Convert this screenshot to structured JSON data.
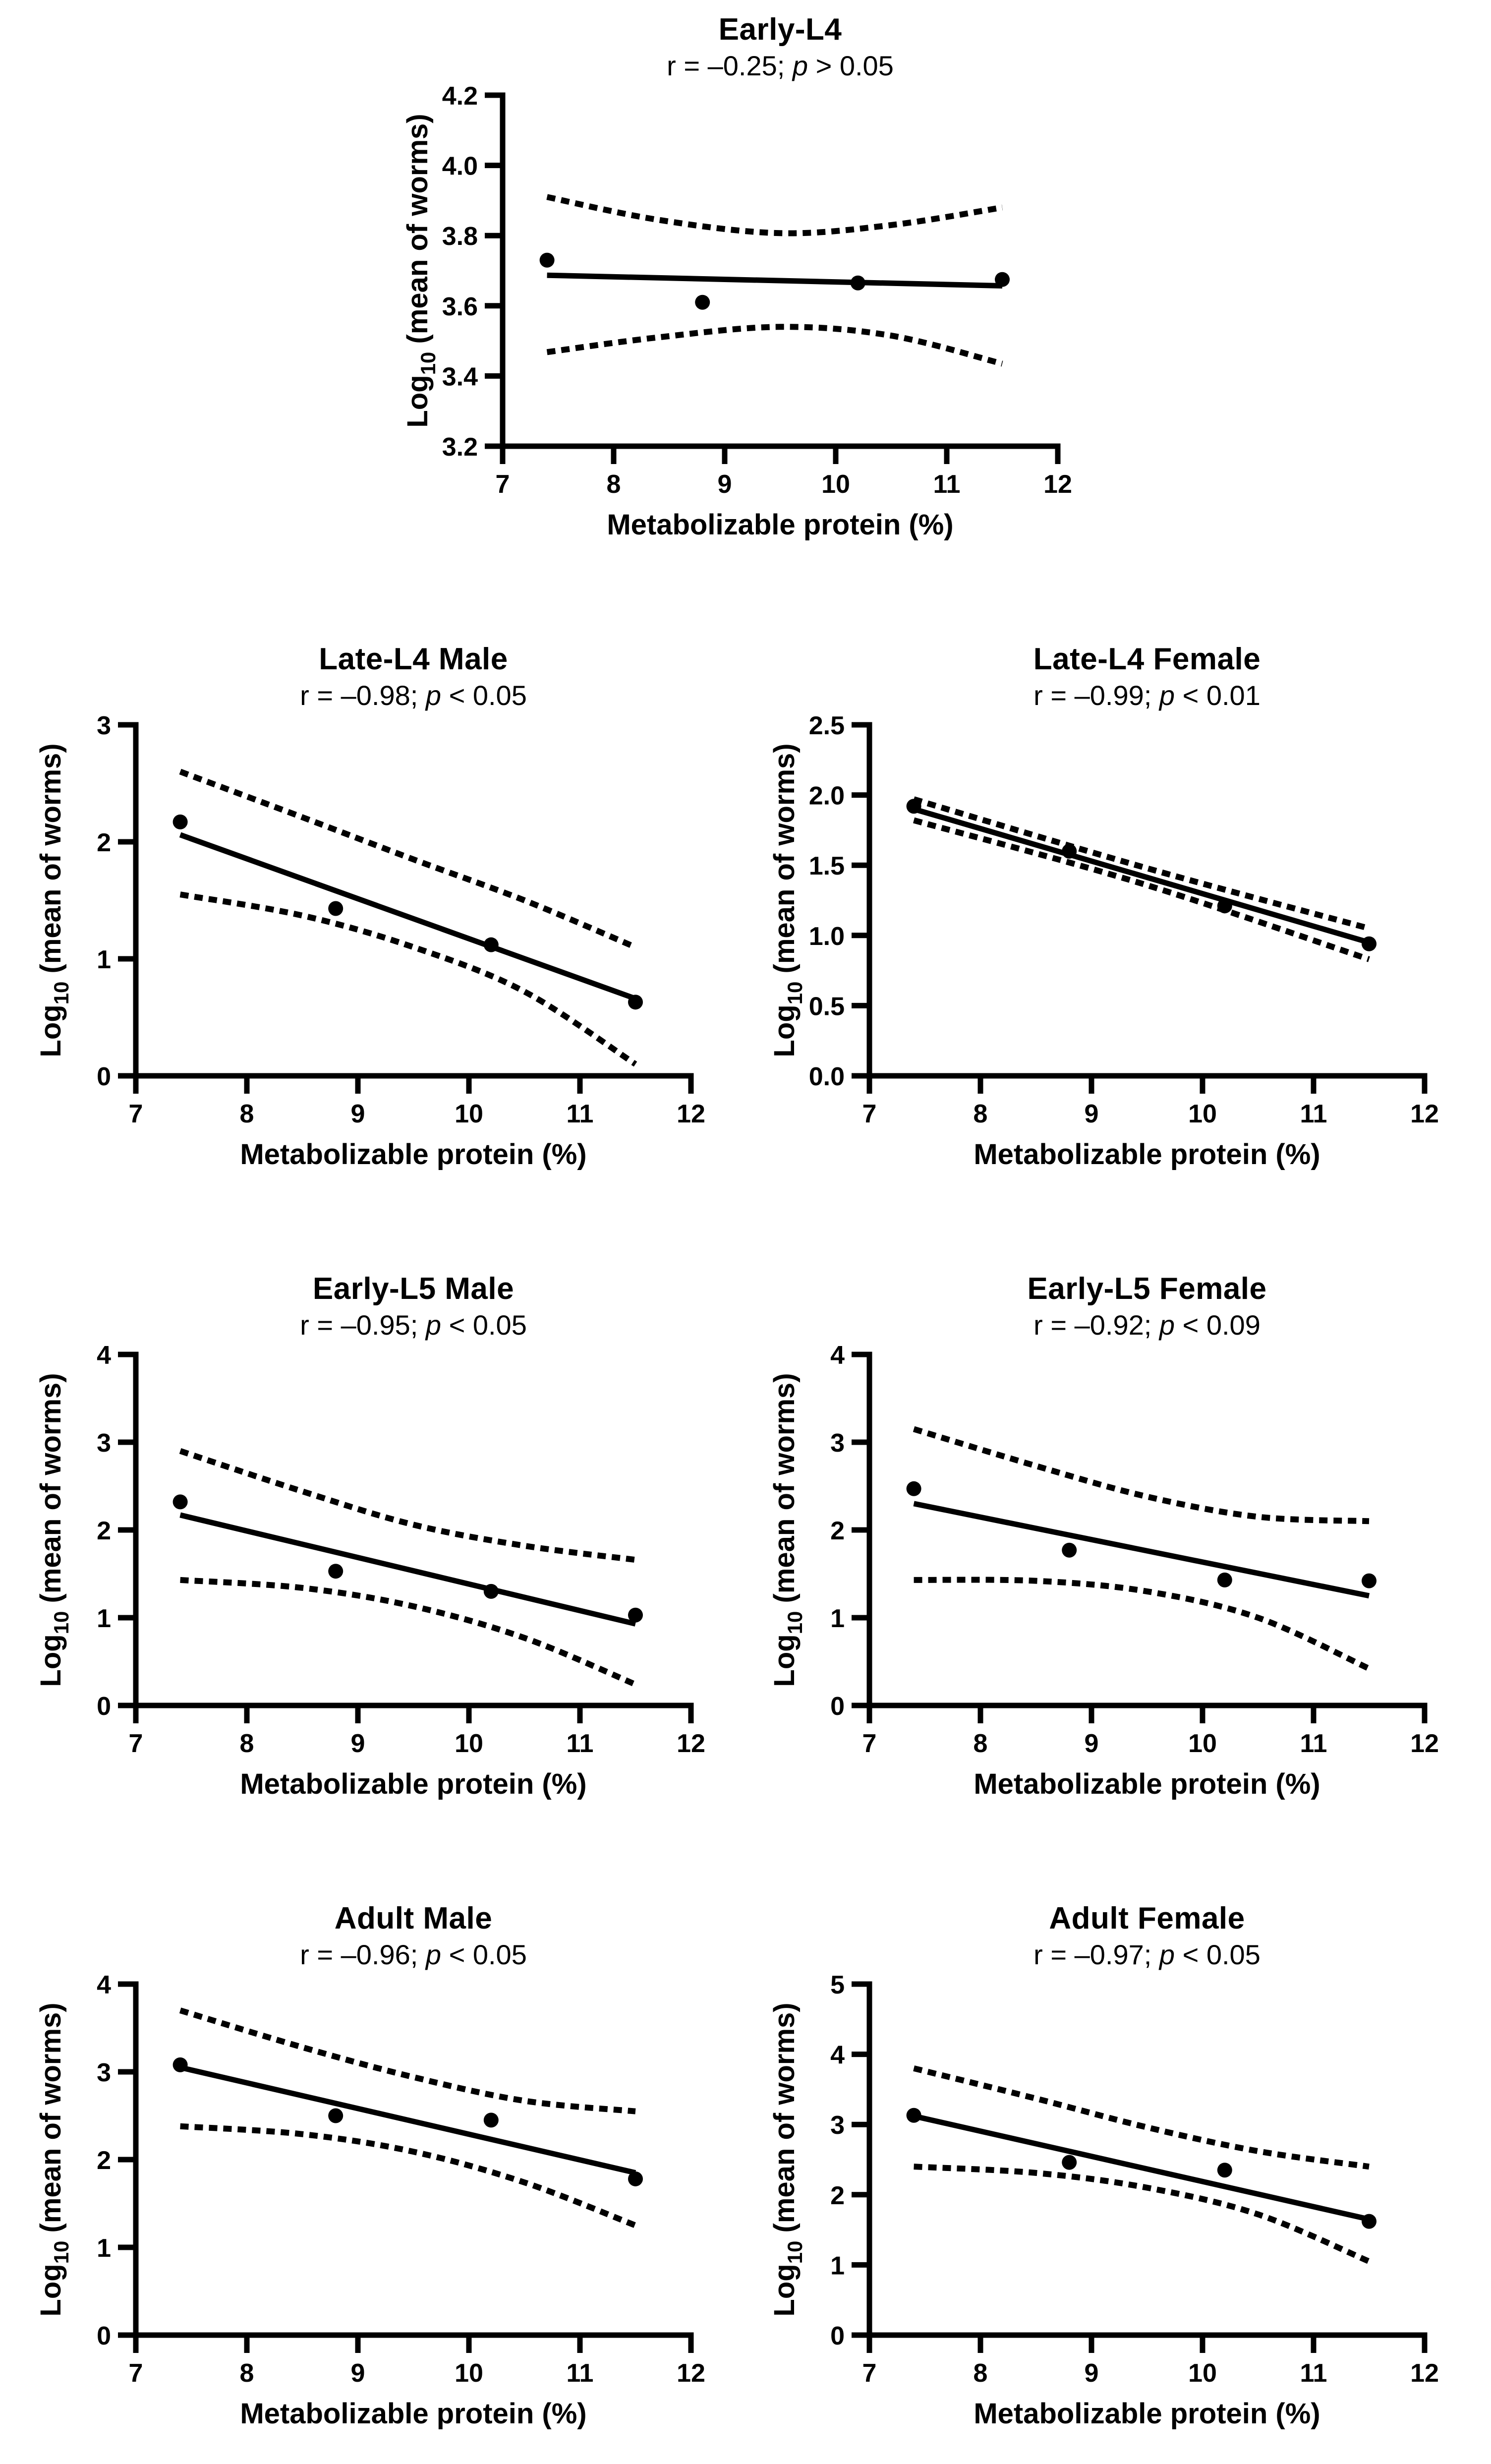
{
  "shared": {
    "background": "#ffffff",
    "axis_color": "#000000",
    "xlabel": "Metabolizable protein (%)",
    "ylabel": "Log10 (mean of worms)",
    "ylabel_pre": "Log",
    "ylabel_sub": "10",
    "ylabel_post": " (mean of worms)",
    "xlim": [
      7,
      12
    ],
    "x_tick_values": [
      7,
      8,
      9,
      10,
      11,
      12
    ],
    "x_tick_labels": [
      "7",
      "8",
      "9",
      "10",
      "11",
      "12"
    ],
    "grid": false,
    "legend": "none",
    "marker_color": "#000000",
    "line_color": "#000000"
  },
  "chart_data": [
    {
      "id": "early-l4",
      "type": "scatter",
      "title": "Early-L4",
      "stats": {
        "pre": "r = –0.25; ",
        "italic": "p",
        "post": " > 0.05"
      },
      "xlabel": "Metabolizable protein (%)",
      "ylabel": "Log10 (mean of worms)",
      "x": [
        7.4,
        8.8,
        10.2,
        11.5
      ],
      "y": [
        3.73,
        3.61,
        3.665,
        3.675
      ],
      "regression": {
        "x1": 7.4,
        "y1": 3.687,
        "x2": 11.5,
        "y2": 3.657
      },
      "ci_upper": [
        [
          7.4,
          3.91
        ],
        [
          8.4,
          3.845
        ],
        [
          9.5,
          3.807
        ],
        [
          10.5,
          3.83
        ],
        [
          11.5,
          3.88
        ]
      ],
      "ci_lower": [
        [
          7.4,
          3.468
        ],
        [
          8.4,
          3.51
        ],
        [
          9.5,
          3.54
        ],
        [
          10.5,
          3.515
        ],
        [
          11.5,
          3.435
        ]
      ],
      "ylim": [
        3.2,
        4.2
      ],
      "y_tick_values": [
        3.2,
        3.4,
        3.6,
        3.8,
        4.0,
        4.2
      ],
      "y_tick_labels": [
        "3.2",
        "3.4",
        "3.6",
        "3.8",
        "4.0",
        "4.2"
      ]
    },
    {
      "id": "late-l4-male",
      "type": "scatter",
      "title": "Late-L4 Male",
      "stats": {
        "pre": "r = –0.98; ",
        "italic": "p",
        "post": " < 0.05"
      },
      "xlabel": "Metabolizable protein (%)",
      "ylabel": "Log10 (mean of worms)",
      "x": [
        7.4,
        8.8,
        10.2,
        11.5
      ],
      "y": [
        2.17,
        1.43,
        1.12,
        0.63
      ],
      "regression": {
        "x1": 7.4,
        "y1": 2.06,
        "x2": 11.5,
        "y2": 0.66
      },
      "ci_upper": [
        [
          7.4,
          2.6
        ],
        [
          8.5,
          2.21
        ],
        [
          9.5,
          1.85
        ],
        [
          10.5,
          1.5
        ],
        [
          11.5,
          1.1
        ]
      ],
      "ci_lower": [
        [
          7.4,
          1.55
        ],
        [
          8.5,
          1.37
        ],
        [
          9.5,
          1.1
        ],
        [
          10.5,
          0.72
        ],
        [
          11.5,
          0.1
        ]
      ],
      "ylim": [
        0,
        3
      ],
      "y_tick_values": [
        0,
        1,
        2,
        3
      ],
      "y_tick_labels": [
        "0",
        "1",
        "2",
        "3"
      ]
    },
    {
      "id": "late-l4-female",
      "type": "scatter",
      "title": "Late-L4 Female",
      "stats": {
        "pre": "r = –0.99; ",
        "italic": "p",
        "post": " < 0.01"
      },
      "xlabel": "Metabolizable protein (%)",
      "ylabel": "Log10 (mean of worms)",
      "x": [
        7.4,
        8.8,
        10.2,
        11.5
      ],
      "y": [
        1.92,
        1.6,
        1.21,
        0.94
      ],
      "regression": {
        "x1": 7.4,
        "y1": 1.9,
        "x2": 11.5,
        "y2": 0.95
      },
      "ci_upper": [
        [
          7.4,
          1.97
        ],
        [
          9.45,
          1.49
        ],
        [
          11.5,
          1.05
        ]
      ],
      "ci_lower": [
        [
          7.4,
          1.82
        ],
        [
          9.45,
          1.37
        ],
        [
          11.5,
          0.83
        ]
      ],
      "ylim": [
        0,
        2.5
      ],
      "y_tick_values": [
        0,
        0.5,
        1.0,
        1.5,
        2.0,
        2.5
      ],
      "y_tick_labels": [
        "0.0",
        "0.5",
        "1.0",
        "1.5",
        "2.0",
        "2.5"
      ]
    },
    {
      "id": "early-l5-male",
      "type": "scatter",
      "title": "Early-L5 Male",
      "stats": {
        "pre": "r = –0.95; ",
        "italic": "p",
        "post": " < 0.05"
      },
      "xlabel": "Metabolizable protein (%)",
      "ylabel": "Log10 (mean of worms)",
      "x": [
        7.4,
        8.8,
        10.2,
        11.5
      ],
      "y": [
        2.32,
        1.53,
        1.3,
        1.03
      ],
      "regression": {
        "x1": 7.4,
        "y1": 2.17,
        "x2": 11.5,
        "y2": 0.93
      },
      "ci_upper": [
        [
          7.4,
          2.9
        ],
        [
          8.5,
          2.44
        ],
        [
          9.5,
          2.06
        ],
        [
          10.5,
          1.82
        ],
        [
          11.5,
          1.66
        ]
      ],
      "ci_lower": [
        [
          7.4,
          1.43
        ],
        [
          8.5,
          1.34
        ],
        [
          9.5,
          1.13
        ],
        [
          10.5,
          0.77
        ],
        [
          11.5,
          0.24
        ]
      ],
      "ylim": [
        0,
        4
      ],
      "y_tick_values": [
        0,
        1,
        2,
        3,
        4
      ],
      "y_tick_labels": [
        "0",
        "1",
        "2",
        "3",
        "4"
      ]
    },
    {
      "id": "early-l5-female",
      "type": "scatter",
      "title": "Early-L5 Female",
      "stats": {
        "pre": "r = –0.92; ",
        "italic": "p",
        "post": " < 0.09"
      },
      "xlabel": "Metabolizable protein (%)",
      "ylabel": "Log10 (mean of worms)",
      "x": [
        7.4,
        8.8,
        10.2,
        11.5
      ],
      "y": [
        2.47,
        1.77,
        1.43,
        1.42
      ],
      "regression": {
        "x1": 7.4,
        "y1": 2.3,
        "x2": 11.5,
        "y2": 1.25
      },
      "ci_upper": [
        [
          7.4,
          3.15
        ],
        [
          8.5,
          2.73
        ],
        [
          9.5,
          2.38
        ],
        [
          10.5,
          2.15
        ],
        [
          11.5,
          2.1
        ]
      ],
      "ci_lower": [
        [
          7.4,
          1.43
        ],
        [
          8.5,
          1.42
        ],
        [
          9.5,
          1.3
        ],
        [
          10.5,
          1.0
        ],
        [
          11.5,
          0.42
        ]
      ],
      "ylim": [
        0,
        4
      ],
      "y_tick_values": [
        0,
        1,
        2,
        3,
        4
      ],
      "y_tick_labels": [
        "0",
        "1",
        "2",
        "3",
        "4"
      ]
    },
    {
      "id": "adult-male",
      "type": "scatter",
      "title": "Adult Male",
      "stats": {
        "pre": "r = –0.96; ",
        "italic": "p",
        "post": " < 0.05"
      },
      "xlabel": "Metabolizable protein (%)",
      "ylabel": "Log10 (mean of worms)",
      "x": [
        7.4,
        8.8,
        10.2,
        11.5
      ],
      "y": [
        3.08,
        2.5,
        2.45,
        1.78
      ],
      "regression": {
        "x1": 7.4,
        "y1": 3.05,
        "x2": 11.5,
        "y2": 1.85
      },
      "ci_upper": [
        [
          7.4,
          3.7
        ],
        [
          8.5,
          3.28
        ],
        [
          9.5,
          2.94
        ],
        [
          10.5,
          2.67
        ],
        [
          11.5,
          2.55
        ]
      ],
      "ci_lower": [
        [
          7.4,
          2.38
        ],
        [
          8.5,
          2.29
        ],
        [
          9.5,
          2.09
        ],
        [
          10.5,
          1.74
        ],
        [
          11.5,
          1.25
        ]
      ],
      "ylim": [
        0,
        4
      ],
      "y_tick_values": [
        0,
        1,
        2,
        3,
        4
      ],
      "y_tick_labels": [
        "0",
        "1",
        "2",
        "3",
        "4"
      ]
    },
    {
      "id": "adult-female",
      "type": "scatter",
      "title": "Adult Female",
      "stats": {
        "pre": "r = –0.97; ",
        "italic": "p",
        "post": " < 0.05"
      },
      "xlabel": "Metabolizable protein (%)",
      "ylabel": "Log10 (mean of worms)",
      "x": [
        7.4,
        8.8,
        10.2,
        11.5
      ],
      "y": [
        3.13,
        2.46,
        2.35,
        1.62
      ],
      "regression": {
        "x1": 7.4,
        "y1": 3.12,
        "x2": 11.5,
        "y2": 1.65
      },
      "ci_upper": [
        [
          7.4,
          3.8
        ],
        [
          8.5,
          3.37
        ],
        [
          9.5,
          2.96
        ],
        [
          10.5,
          2.62
        ],
        [
          11.5,
          2.4
        ]
      ],
      "ci_lower": [
        [
          7.4,
          2.4
        ],
        [
          8.5,
          2.31
        ],
        [
          9.5,
          2.1
        ],
        [
          10.5,
          1.72
        ],
        [
          11.5,
          1.05
        ]
      ],
      "ylim": [
        0,
        5
      ],
      "y_tick_values": [
        0,
        1,
        2,
        3,
        4,
        5
      ],
      "y_tick_labels": [
        "0",
        "1",
        "2",
        "3",
        "4",
        "5"
      ]
    }
  ]
}
